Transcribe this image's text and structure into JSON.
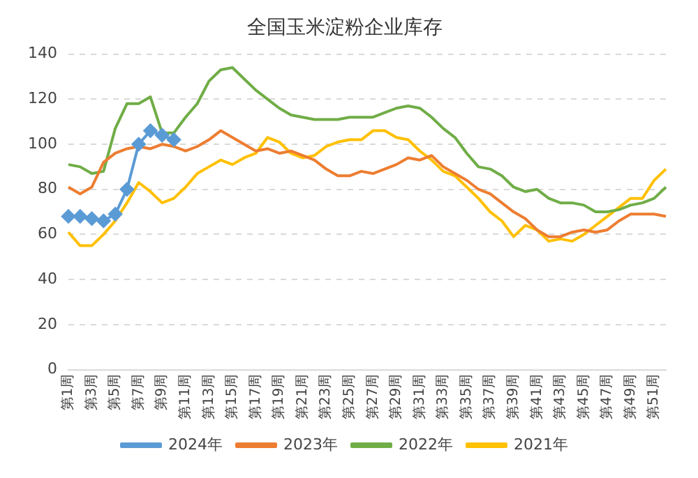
{
  "chart_data": {
    "type": "line",
    "title": "全国玉米淀粉企业库存",
    "categories": [
      "第1周",
      null,
      "第3周",
      null,
      "第5周",
      null,
      "第7周",
      null,
      "第9周",
      null,
      "第11周",
      null,
      "第13周",
      null,
      "第15周",
      null,
      "第17周",
      null,
      "第19周",
      null,
      "第21周",
      null,
      "第23周",
      null,
      "第25周",
      null,
      "第27周",
      null,
      "第29周",
      null,
      "第31周",
      null,
      "第33周",
      null,
      "第35周",
      null,
      "第37周",
      null,
      "第39周",
      null,
      "第41周",
      null,
      "第43周",
      null,
      "第45周",
      null,
      "第47周",
      null,
      "第49周",
      null,
      "第51周",
      null
    ],
    "series": [
      {
        "name": "2024年",
        "color": "#5b9bd5",
        "marker": "diamond",
        "values": [
          68,
          68,
          67,
          66,
          69,
          80,
          100,
          106,
          104,
          102,
          null,
          null,
          null,
          null,
          null,
          null,
          null,
          null,
          null,
          null,
          null,
          null,
          null,
          null,
          null,
          null,
          null,
          null,
          null,
          null,
          null,
          null,
          null,
          null,
          null,
          null,
          null,
          null,
          null,
          null,
          null,
          null,
          null,
          null,
          null,
          null,
          null,
          null,
          null,
          null,
          null,
          null
        ]
      },
      {
        "name": "2023年",
        "color": "#ed7d31",
        "marker": "none",
        "values": [
          81,
          78,
          81,
          92,
          96,
          98,
          99,
          98,
          100,
          99,
          97,
          99,
          102,
          106,
          103,
          100,
          97,
          98,
          96,
          97,
          95,
          93,
          89,
          86,
          86,
          88,
          87,
          89,
          91,
          94,
          93,
          95,
          90,
          87,
          84,
          80,
          78,
          74,
          70,
          67,
          62,
          59,
          59,
          61,
          62,
          61,
          62,
          66,
          69,
          69,
          69,
          68
        ]
      },
      {
        "name": "2022年",
        "color": "#70ad47",
        "marker": "none",
        "values": [
          91,
          90,
          87,
          88,
          107,
          118,
          118,
          121,
          105,
          105,
          112,
          118,
          128,
          133,
          134,
          129,
          124,
          120,
          116,
          113,
          112,
          111,
          111,
          111,
          112,
          112,
          112,
          114,
          116,
          117,
          116,
          112,
          107,
          103,
          96,
          90,
          89,
          86,
          81,
          79,
          80,
          76,
          74,
          74,
          73,
          70,
          70,
          71,
          73,
          74,
          76,
          81
        ]
      },
      {
        "name": "2021年",
        "color": "#ffc000",
        "marker": "none",
        "values": [
          61,
          55,
          55,
          60,
          66,
          74,
          83,
          79,
          74,
          76,
          81,
          87,
          90,
          93,
          91,
          94,
          96,
          103,
          101,
          96,
          94,
          95,
          99,
          101,
          102,
          102,
          106,
          106,
          103,
          102,
          97,
          93,
          88,
          86,
          81,
          76,
          70,
          66,
          59,
          64,
          62,
          57,
          58,
          57,
          60,
          64,
          68,
          72,
          76,
          76,
          84,
          89
        ]
      }
    ],
    "ylim": [
      0,
      140
    ],
    "yticks": [
      0,
      20,
      40,
      60,
      80,
      100,
      120,
      140
    ],
    "grid": "y",
    "legend": "bottom"
  }
}
